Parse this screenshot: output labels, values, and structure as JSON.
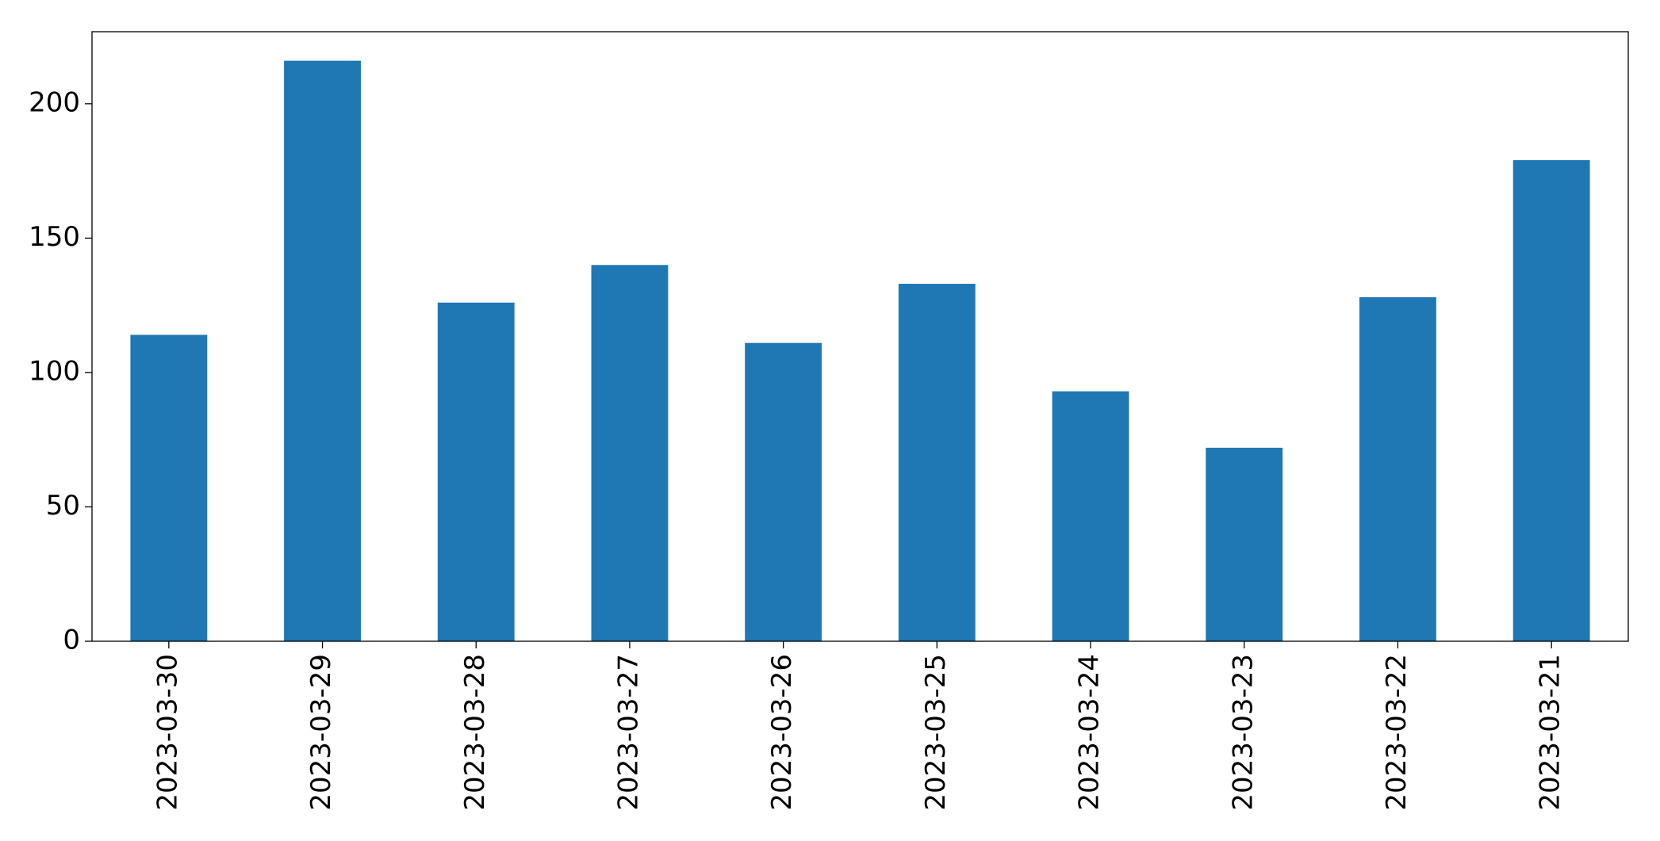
{
  "chart_data": {
    "type": "bar",
    "categories": [
      "2023-03-30",
      "2023-03-29",
      "2023-03-28",
      "2023-03-27",
      "2023-03-26",
      "2023-03-25",
      "2023-03-24",
      "2023-03-23",
      "2023-03-22",
      "2023-03-21"
    ],
    "values": [
      114,
      216,
      126,
      140,
      111,
      133,
      93,
      72,
      128,
      179
    ],
    "color": "#1f77b4",
    "ylim": [
      0,
      226.8
    ],
    "yticks": [
      0,
      50,
      100,
      150,
      200
    ],
    "grid": false
  }
}
